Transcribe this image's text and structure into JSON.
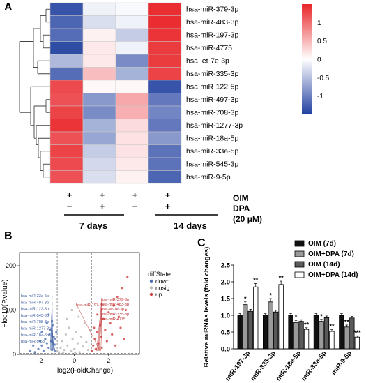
{
  "figure": {
    "panel_a_letter": "A",
    "panel_b_letter": "B",
    "panel_c_letter": "C"
  },
  "chart_data": [
    {
      "type": "heatmap",
      "panel": "A",
      "rows": [
        "hsa-miR-379-3p",
        "hsa-miR-483-3p",
        "hsa-miR-197-3p",
        "hsa-miR-4775",
        "hsa-let-7e-3p",
        "hsa-miR-335-3p",
        "hsa-miR-122-5p",
        "hsa-miR-497-3p",
        "hsa-miR-708-3p",
        "hsa-miR-1277-3p",
        "hsa-miR-18a-5p",
        "hsa-miR-33a-5p",
        "hsa-miR-545-3p",
        "hsa-miR-9-5p"
      ],
      "values": [
        [
          -1.35,
          -0.1,
          -0.05,
          1.45
        ],
        [
          -1.2,
          -0.25,
          -0.1,
          1.45
        ],
        [
          -1.15,
          0.1,
          -0.4,
          1.4
        ],
        [
          -1.4,
          0.15,
          -0.1,
          1.35
        ],
        [
          -0.55,
          0.15,
          -0.9,
          1.35
        ],
        [
          -1.15,
          0.45,
          -0.6,
          1.3
        ],
        [
          1.25,
          0.05,
          0.05,
          -1.35
        ],
        [
          1.2,
          -0.8,
          0.6,
          -1.05
        ],
        [
          1.3,
          -0.9,
          0.55,
          -0.95
        ],
        [
          1.4,
          -0.6,
          0.25,
          -1.05
        ],
        [
          1.2,
          -0.7,
          0.2,
          -0.8
        ],
        [
          1.3,
          -0.4,
          0.2,
          -1.1
        ],
        [
          1.25,
          -0.3,
          0.15,
          -1.1
        ],
        [
          1.2,
          -0.25,
          0.1,
          -1.2
        ]
      ],
      "colorbar": {
        "ticks": [
          "1",
          "0.5",
          "0",
          "-0.5",
          "-1"
        ],
        "tick_values": [
          1,
          0.5,
          0,
          -0.5,
          -1
        ],
        "range": [
          -1.5,
          1.5
        ]
      },
      "colors": {
        "high": "#e8262a",
        "mid": "#ffffff",
        "low": "#2140a0"
      },
      "conditions": {
        "row_oim_label": "OIM",
        "row_dpa_label": "DPA",
        "row_dpa_conc": "(20 μM)",
        "oim": [
          "+",
          "+",
          "+",
          "+"
        ],
        "dpa": [
          "−",
          "+",
          "−",
          "+"
        ],
        "groups": [
          "7 days",
          "14 days"
        ]
      }
    },
    {
      "type": "scatter",
      "panel": "B",
      "xlabel": "log2(FoldChange)",
      "ylabel": "−log10(P.value)",
      "xlim": [
        -3.2,
        3.8
      ],
      "ylim": [
        0,
        230
      ],
      "xticks": [
        -2,
        0,
        2
      ],
      "yticks": [
        0,
        100,
        200
      ],
      "thresholds": {
        "x": [
          -1,
          1
        ],
        "y": 2
      },
      "legend": {
        "title": "diffState",
        "items": [
          "down",
          "nosig",
          "up"
        ]
      },
      "colors": {
        "down": "#4b6fb0",
        "nosig": "#b8b8b8",
        "up": "#cf3d3d"
      },
      "labels_down": [
        "hsa-miR-33a-5p",
        "hsa-miR-497-3p",
        "hsa-miR-122-5p",
        "hsa-miR-545-3p",
        "hsa-miR-708-3p",
        "hsa-miR-1277-3p",
        "hsa-miR-18a-5p",
        "hsa-miR-9-5p"
      ],
      "labels_up": [
        "hsa-miR-379-3p",
        "hsa-miR-483-3p",
        "hsa-let-7e-3p",
        "hsa-miR-335-3p",
        "hsa-miR-197-3p",
        "hsa-miR-4775"
      ],
      "points": [
        {
          "x": -2.3,
          "y": 5,
          "s": "down"
        },
        {
          "x": -2.1,
          "y": 12,
          "s": "down"
        },
        {
          "x": -1.9,
          "y": 20,
          "s": "down"
        },
        {
          "x": -1.8,
          "y": 8,
          "s": "down"
        },
        {
          "x": -1.7,
          "y": 35,
          "s": "down"
        },
        {
          "x": -1.6,
          "y": 25,
          "s": "down"
        },
        {
          "x": -1.5,
          "y": 15,
          "s": "down"
        },
        {
          "x": -1.45,
          "y": 45,
          "s": "down"
        },
        {
          "x": -1.4,
          "y": 55,
          "s": "down"
        },
        {
          "x": -1.35,
          "y": 30,
          "s": "down"
        },
        {
          "x": -1.3,
          "y": 10,
          "s": "down"
        },
        {
          "x": -1.25,
          "y": 65,
          "s": "down"
        },
        {
          "x": -1.2,
          "y": 40,
          "s": "down"
        },
        {
          "x": -1.15,
          "y": 22,
          "s": "down"
        },
        {
          "x": -1.1,
          "y": 8,
          "s": "down"
        },
        {
          "x": -1.05,
          "y": 50,
          "s": "down"
        },
        {
          "x": -1.6,
          "y": 70,
          "s": "down"
        },
        {
          "x": -1.9,
          "y": 50,
          "s": "down"
        },
        {
          "x": -2.0,
          "y": 30,
          "s": "down"
        },
        {
          "x": -2.4,
          "y": 20,
          "s": "down"
        },
        {
          "x": -2.6,
          "y": 8,
          "s": "down"
        },
        {
          "x": -1.5,
          "y": 90,
          "s": "down"
        },
        {
          "x": -1.3,
          "y": 75,
          "s": "down"
        },
        {
          "x": -1.1,
          "y": 35,
          "s": "down"
        },
        {
          "x": -0.9,
          "y": 5,
          "s": "nosig"
        },
        {
          "x": -0.8,
          "y": 15,
          "s": "nosig"
        },
        {
          "x": -0.7,
          "y": 30,
          "s": "nosig"
        },
        {
          "x": -0.6,
          "y": 10,
          "s": "nosig"
        },
        {
          "x": -0.5,
          "y": 45,
          "s": "nosig"
        },
        {
          "x": -0.4,
          "y": 20,
          "s": "nosig"
        },
        {
          "x": -0.3,
          "y": 60,
          "s": "nosig"
        },
        {
          "x": -0.2,
          "y": 8,
          "s": "nosig"
        },
        {
          "x": -0.1,
          "y": 35,
          "s": "nosig"
        },
        {
          "x": 0.0,
          "y": 12,
          "s": "nosig"
        },
        {
          "x": 0.1,
          "y": 50,
          "s": "nosig"
        },
        {
          "x": 0.2,
          "y": 25,
          "s": "nosig"
        },
        {
          "x": 0.3,
          "y": 5,
          "s": "nosig"
        },
        {
          "x": 0.4,
          "y": 40,
          "s": "nosig"
        },
        {
          "x": 0.5,
          "y": 18,
          "s": "nosig"
        },
        {
          "x": 0.6,
          "y": 70,
          "s": "nosig"
        },
        {
          "x": 0.7,
          "y": 28,
          "s": "nosig"
        },
        {
          "x": 0.8,
          "y": 10,
          "s": "nosig"
        },
        {
          "x": 0.9,
          "y": 55,
          "s": "nosig"
        },
        {
          "x": -0.45,
          "y": 80,
          "s": "nosig"
        },
        {
          "x": 0.25,
          "y": 85,
          "s": "nosig"
        },
        {
          "x": -0.15,
          "y": 100,
          "s": "nosig"
        },
        {
          "x": 0.05,
          "y": 3,
          "s": "nosig"
        },
        {
          "x": -0.65,
          "y": 3,
          "s": "nosig"
        },
        {
          "x": 1.05,
          "y": 8,
          "s": "up"
        },
        {
          "x": 1.1,
          "y": 20,
          "s": "up"
        },
        {
          "x": 1.2,
          "y": 35,
          "s": "up"
        },
        {
          "x": 1.25,
          "y": 12,
          "s": "up"
        },
        {
          "x": 1.3,
          "y": 50,
          "s": "up"
        },
        {
          "x": 1.4,
          "y": 25,
          "s": "up"
        },
        {
          "x": 1.5,
          "y": 65,
          "s": "up"
        },
        {
          "x": 1.55,
          "y": 40,
          "s": "up"
        },
        {
          "x": 1.6,
          "y": 15,
          "s": "up"
        },
        {
          "x": 1.7,
          "y": 80,
          "s": "up"
        },
        {
          "x": 1.8,
          "y": 55,
          "s": "up"
        },
        {
          "x": 1.9,
          "y": 30,
          "s": "up"
        },
        {
          "x": 2.0,
          "y": 95,
          "s": "up"
        },
        {
          "x": 2.1,
          "y": 70,
          "s": "up"
        },
        {
          "x": 2.2,
          "y": 45,
          "s": "up"
        },
        {
          "x": 2.3,
          "y": 110,
          "s": "up"
        },
        {
          "x": 2.4,
          "y": 20,
          "s": "up"
        },
        {
          "x": 2.5,
          "y": 130,
          "s": "up"
        },
        {
          "x": 2.6,
          "y": 85,
          "s": "up"
        },
        {
          "x": 2.7,
          "y": 60,
          "s": "up"
        },
        {
          "x": 2.8,
          "y": 150,
          "s": "up"
        },
        {
          "x": 2.9,
          "y": 35,
          "s": "up"
        },
        {
          "x": 3.0,
          "y": 100,
          "s": "up"
        },
        {
          "x": 3.1,
          "y": 175,
          "s": "up"
        },
        {
          "x": 1.35,
          "y": 90,
          "s": "up"
        },
        {
          "x": 1.15,
          "y": 60,
          "s": "up"
        }
      ]
    },
    {
      "type": "bar",
      "panel": "C",
      "ylabel": "Relative miRNAs levels (fold changes)",
      "ylim": [
        0,
        2.5
      ],
      "yticks": [
        "0.0",
        "0.5",
        "1.0",
        "1.5",
        "2.0",
        "2.5"
      ],
      "categories": [
        "miR-197-3p",
        "miR-335-3p",
        "miR-18a-5p",
        "miR-33a-5p",
        "miR-9-5p"
      ],
      "series": [
        {
          "name": "OIM (7d)",
          "values": [
            1.0,
            1.0,
            1.0,
            1.0,
            1.0
          ],
          "err": [
            0.05,
            0.05,
            0.05,
            0.05,
            0.05
          ],
          "fill": "#111111"
        },
        {
          "name": "OIM+DPA (7d)",
          "values": [
            1.32,
            1.4,
            0.78,
            0.82,
            0.65
          ],
          "err": [
            0.08,
            0.1,
            0.06,
            0.06,
            0.06
          ],
          "fill": "#9a9a9a"
        },
        {
          "name": "OIM (14d)",
          "values": [
            1.12,
            1.1,
            0.82,
            0.93,
            0.92
          ],
          "err": [
            0.06,
            0.05,
            0.05,
            0.05,
            0.05
          ],
          "fill": "#5a5a5a"
        },
        {
          "name": "OIM+DPA (14d)",
          "values": [
            1.85,
            1.92,
            0.58,
            0.52,
            0.35
          ],
          "err": [
            0.1,
            0.1,
            0.05,
            0.05,
            0.04
          ],
          "fill": "#ffffff"
        }
      ],
      "significance": [
        [
          "",
          "*",
          "",
          "**"
        ],
        [
          "",
          "*",
          "",
          "**"
        ],
        [
          "",
          "*",
          "",
          "**"
        ],
        [
          "",
          "*",
          "",
          "**"
        ],
        [
          "",
          "**",
          "",
          "***"
        ]
      ]
    }
  ]
}
